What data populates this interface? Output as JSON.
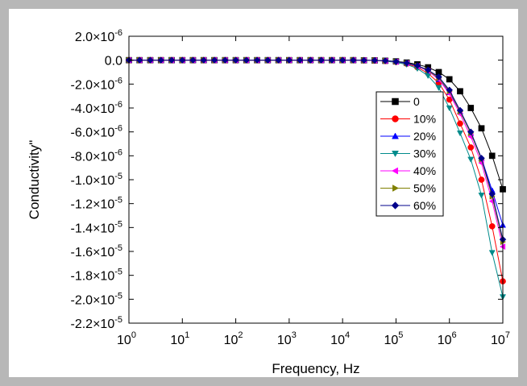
{
  "chart_data": {
    "type": "line",
    "xlabel": "Frequency, Hz",
    "ylabel": "Conductivity\"",
    "xscale": "log",
    "xlim": [
      1,
      10000000
    ],
    "ylim": [
      -2.2e-05,
      2e-06
    ],
    "x_ticks": [
      {
        "base": "10",
        "exp": "0"
      },
      {
        "base": "10",
        "exp": "1"
      },
      {
        "base": "10",
        "exp": "2"
      },
      {
        "base": "10",
        "exp": "3"
      },
      {
        "base": "10",
        "exp": "4"
      },
      {
        "base": "10",
        "exp": "5"
      },
      {
        "base": "10",
        "exp": "6"
      },
      {
        "base": "10",
        "exp": "7"
      }
    ],
    "y_ticks": [
      {
        "mant": "2.0",
        "exp": "-6"
      },
      {
        "mant": "0.0",
        "exp": ""
      },
      {
        "mant": "-2.0",
        "exp": "-6"
      },
      {
        "mant": "-4.0",
        "exp": "-6"
      },
      {
        "mant": "-6.0",
        "exp": "-6"
      },
      {
        "mant": "-8.0",
        "exp": "-6"
      },
      {
        "mant": "-1.0",
        "exp": "-5"
      },
      {
        "mant": "-1.2",
        "exp": "-5"
      },
      {
        "mant": "-1.4",
        "exp": "-5"
      },
      {
        "mant": "-1.6",
        "exp": "-5"
      },
      {
        "mant": "-1.8",
        "exp": "-5"
      },
      {
        "mant": "-2.0",
        "exp": "-5"
      },
      {
        "mant": "-2.2",
        "exp": "-5"
      }
    ],
    "legend_position": "right-upper",
    "grid": false,
    "x": [
      1,
      1.58,
      2.51,
      3.98,
      6.31,
      10,
      15.8,
      25.1,
      39.8,
      63.1,
      100,
      158,
      251,
      398,
      631,
      1000,
      1585,
      2512,
      3981,
      6310,
      10000,
      15849,
      25119,
      39811,
      63096,
      100000,
      158489,
      251189,
      398107,
      630957,
      1000000,
      1584893,
      2511886,
      3981072,
      6309573,
      10000000
    ],
    "series": [
      {
        "name": "0",
        "color": "#000000",
        "marker": "square",
        "values": [
          0,
          0,
          0,
          0,
          0,
          0,
          0,
          0,
          0,
          0,
          0,
          0,
          0,
          0,
          0,
          0,
          0,
          0,
          0,
          0,
          0,
          0,
          -1e-08,
          -2e-08,
          -5e-08,
          -1e-07,
          -2e-07,
          -3.5e-07,
          -6e-07,
          -1e-06,
          -1.6e-06,
          -2.6e-06,
          -4e-06,
          -5.7e-06,
          -8e-06,
          -1.08e-05
        ]
      },
      {
        "name": "10%",
        "color": "#ff0000",
        "marker": "circle",
        "values": [
          0,
          0,
          0,
          0,
          0,
          0,
          0,
          0,
          0,
          0,
          0,
          0,
          0,
          0,
          0,
          0,
          0,
          0,
          0,
          0,
          0,
          0,
          -1e-08,
          -3e-08,
          -7e-08,
          -1.5e-07,
          -3e-07,
          -6e-07,
          -1.1e-06,
          -1.9e-06,
          -3.3e-06,
          -5.3e-06,
          -7.3e-06,
          -1e-05,
          -1.39e-05,
          -1.85e-05
        ]
      },
      {
        "name": "20%",
        "color": "#0000ff",
        "marker": "triangle-up",
        "values": [
          0,
          0,
          0,
          0,
          0,
          0,
          0,
          0,
          0,
          0,
          0,
          0,
          0,
          0,
          0,
          0,
          0,
          0,
          0,
          0,
          0,
          0,
          -1e-08,
          -2e-08,
          -6e-08,
          -1.3e-07,
          -2.6e-07,
          -5e-07,
          -9e-07,
          -1.6e-06,
          -2.7e-06,
          -4.3e-06,
          -6.1e-06,
          -8.2e-06,
          -1.09e-05,
          -1.38e-05
        ]
      },
      {
        "name": "30%",
        "color": "#008b8b",
        "marker": "triangle-down",
        "values": [
          0,
          0,
          0,
          0,
          0,
          0,
          0,
          0,
          0,
          0,
          0,
          0,
          0,
          0,
          0,
          0,
          0,
          0,
          0,
          0,
          0,
          0,
          -1e-08,
          -3e-08,
          -8e-08,
          -1.8e-07,
          -3.6e-07,
          -7e-07,
          -1.3e-06,
          -2.3e-06,
          -4e-06,
          -6.1e-06,
          -8.3e-06,
          -1.13e-05,
          -1.61e-05,
          -1.98e-05
        ]
      },
      {
        "name": "40%",
        "color": "#ff00ff",
        "marker": "triangle-left",
        "values": [
          0,
          0,
          0,
          0,
          0,
          0,
          0,
          0,
          0,
          0,
          0,
          0,
          0,
          0,
          0,
          0,
          0,
          0,
          0,
          0,
          0,
          0,
          -1e-08,
          -2e-08,
          -6e-08,
          -1.3e-07,
          -2.6e-07,
          -5e-07,
          -9e-07,
          -1.6e-06,
          -2.8e-06,
          -4.5e-06,
          -6.4e-06,
          -8.6e-06,
          -1.18e-05,
          -1.56e-05
        ]
      },
      {
        "name": "50%",
        "color": "#808000",
        "marker": "triangle-right",
        "values": [
          0,
          0,
          0,
          0,
          0,
          0,
          0,
          0,
          0,
          0,
          0,
          0,
          0,
          0,
          0,
          0,
          0,
          0,
          0,
          0,
          0,
          0,
          -1e-08,
          -2e-08,
          -6e-08,
          -1.3e-07,
          -2.5e-07,
          -4.8e-07,
          -8.6e-07,
          -1.5e-06,
          -2.6e-06,
          -4.3e-06,
          -6.1e-06,
          -8.3e-06,
          -1.14e-05,
          -1.52e-05
        ]
      },
      {
        "name": "60%",
        "color": "#00008b",
        "marker": "diamond",
        "values": [
          0,
          0,
          0,
          0,
          0,
          0,
          0,
          0,
          0,
          0,
          0,
          0,
          0,
          0,
          0,
          0,
          0,
          0,
          0,
          0,
          0,
          0,
          -1e-08,
          -2e-08,
          -5e-08,
          -1.2e-07,
          -2.4e-07,
          -4.6e-07,
          -8.2e-07,
          -1.4e-06,
          -2.5e-06,
          -4.2e-06,
          -6e-06,
          -8.2e-06,
          -1.12e-05,
          -1.5e-05
        ]
      }
    ]
  }
}
